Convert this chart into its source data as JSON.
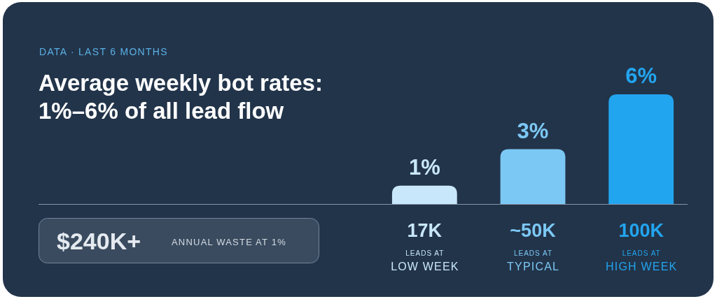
{
  "chart_data": {
    "type": "bar",
    "title": "Average weekly bot rates:\n1%–6% of all lead flow",
    "subtitle": "DATA · LAST 6 MONTHS",
    "categories": [
      "17K\nLEADS AT\nLOW WEEK",
      "~50K\nLEADS AT\nTYPICAL",
      "100K\nLEADS AT\nHIGH WEEK"
    ],
    "values": [
      1,
      3,
      6
    ],
    "colors": [
      "#c9e7fa",
      "#7cc8f5",
      "#22a5ef"
    ],
    "value_labels": [
      "1%",
      "3%",
      "6%"
    ],
    "annotations": [
      "$240K+",
      "ANNUAL WASTE AT 1%"
    ]
  }
}
